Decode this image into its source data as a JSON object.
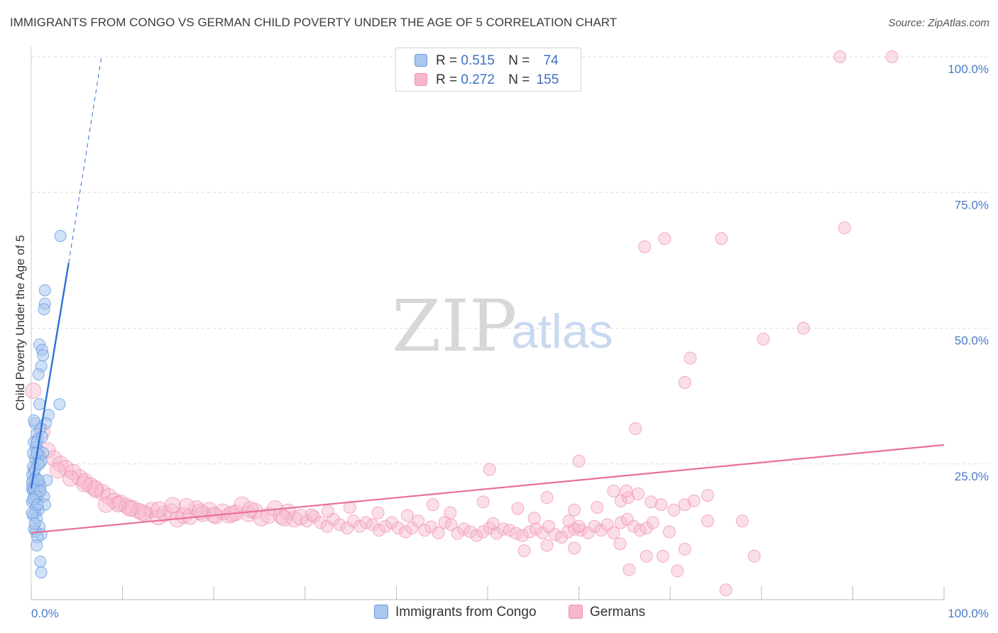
{
  "header": {
    "title": "IMMIGRANTS FROM CONGO VS GERMAN CHILD POVERTY UNDER THE AGE OF 5 CORRELATION CHART",
    "source": "Source: ZipAtlas.com"
  },
  "legend": {
    "rows": [
      {
        "r_label": "R =",
        "r_value": "0.515",
        "n_label": "N =",
        "n_value": "74"
      },
      {
        "r_label": "R =",
        "r_value": "0.272",
        "n_label": "N =",
        "n_value": "155"
      }
    ]
  },
  "watermark": {
    "zip": "ZIP",
    "atlas": "atlas"
  },
  "colors": {
    "congo_fill": "#a9c8f0",
    "congo_stroke": "#6a9ae0",
    "congo_line": "#2f6fd4",
    "german_fill": "#f7b8cc",
    "german_stroke": "#ee8fae",
    "german_line": "#e8709a",
    "grid": "#dcdcdc",
    "tick_label": "#4a7cc9"
  },
  "chart_data": {
    "type": "scatter",
    "title": "IMMIGRANTS FROM CONGO VS GERMAN CHILD POVERTY UNDER THE AGE OF 5 CORRELATION CHART",
    "xlabel": "",
    "ylabel": "Child Poverty Under the Age of 5",
    "xlim": [
      0,
      100
    ],
    "ylim": [
      0,
      100
    ],
    "x_tick_labels": [
      "0.0%",
      "100.0%"
    ],
    "y_ticks": [
      {
        "value": 25,
        "label": "25.0%"
      },
      {
        "value": 50,
        "label": "50.0%"
      },
      {
        "value": 75,
        "label": "75.0%"
      },
      {
        "value": 100,
        "label": "100.0%"
      }
    ],
    "series": [
      {
        "name": "Immigrants from Congo",
        "R": 0.515,
        "N": 74,
        "trend": {
          "x0": 0,
          "y0": 20.5,
          "x1": 4.1,
          "y1": 62,
          "dashed_to": {
            "x": 7.7,
            "y": 100
          }
        },
        "points": [
          [
            3.2,
            67
          ],
          [
            1.5,
            57
          ],
          [
            1.5,
            54.5
          ],
          [
            1.4,
            53.5
          ],
          [
            0.9,
            47
          ],
          [
            1.2,
            46
          ],
          [
            1.3,
            45
          ],
          [
            1.1,
            43
          ],
          [
            0.8,
            41.5
          ],
          [
            3.1,
            36
          ],
          [
            0.9,
            36
          ],
          [
            1.9,
            34
          ],
          [
            0.4,
            32.5
          ],
          [
            1.6,
            32.5
          ],
          [
            1.0,
            31.5
          ],
          [
            0.6,
            30.5
          ],
          [
            0.7,
            29.5
          ],
          [
            0.3,
            29
          ],
          [
            0.5,
            28
          ],
          [
            0.8,
            27.5
          ],
          [
            1.3,
            27
          ],
          [
            0.9,
            26.5
          ],
          [
            0.4,
            26
          ],
          [
            1.1,
            25.5
          ],
          [
            0.7,
            25
          ],
          [
            0.2,
            24.5
          ],
          [
            0.3,
            23.5
          ],
          [
            0.1,
            23
          ],
          [
            0.5,
            22.5
          ],
          [
            1.7,
            22
          ],
          [
            0.2,
            22
          ],
          [
            0.4,
            21.5
          ],
          [
            0.8,
            21.5
          ],
          [
            1.0,
            21
          ],
          [
            0.3,
            21
          ],
          [
            0.1,
            20.5
          ],
          [
            0.6,
            20.5
          ],
          [
            0.9,
            20
          ],
          [
            0.2,
            20
          ],
          [
            0.4,
            19.5
          ],
          [
            1.4,
            19
          ],
          [
            0.7,
            19
          ],
          [
            0.3,
            18.5
          ],
          [
            0.1,
            18
          ],
          [
            1.5,
            17.5
          ],
          [
            0.5,
            17
          ],
          [
            0.8,
            16.5
          ],
          [
            0.4,
            16
          ],
          [
            0.2,
            15.5
          ],
          [
            0.6,
            15
          ],
          [
            0.9,
            13.5
          ],
          [
            0.3,
            13
          ],
          [
            0.5,
            12.5
          ],
          [
            1.1,
            12
          ],
          [
            0.7,
            11.5
          ],
          [
            0.6,
            10
          ],
          [
            1.0,
            7
          ],
          [
            1.1,
            5
          ],
          [
            0.2,
            27
          ],
          [
            0.6,
            27
          ],
          [
            0.1,
            21.5
          ],
          [
            0.3,
            20.5
          ],
          [
            0.5,
            19
          ],
          [
            0.2,
            18.5
          ],
          [
            0.8,
            22
          ],
          [
            0.4,
            24
          ],
          [
            0.6,
            29
          ],
          [
            1.2,
            30
          ],
          [
            0.3,
            33
          ],
          [
            0.9,
            25
          ],
          [
            0.1,
            16
          ],
          [
            0.7,
            17.5
          ],
          [
            0.4,
            14
          ],
          [
            1.0,
            20
          ]
        ]
      },
      {
        "name": "Germans",
        "R": 0.272,
        "N": 155,
        "trend": {
          "x0": 0,
          "y0": 12.3,
          "x1": 100,
          "y1": 28.5
        },
        "points": [
          [
            88.6,
            100
          ],
          [
            94.3,
            100
          ],
          [
            89.1,
            68.5
          ],
          [
            69.4,
            66.5
          ],
          [
            75.6,
            66.5
          ],
          [
            67.2,
            65
          ],
          [
            84.6,
            50
          ],
          [
            80.2,
            48
          ],
          [
            72.2,
            44.5
          ],
          [
            71.6,
            40
          ],
          [
            66.2,
            31.5
          ],
          [
            0.2,
            38.5
          ],
          [
            1.2,
            31
          ],
          [
            1.8,
            27.5
          ],
          [
            2.5,
            26
          ],
          [
            3.2,
            25
          ],
          [
            3.8,
            24.2
          ],
          [
            4.6,
            23.5
          ],
          [
            5.3,
            22.5
          ],
          [
            5.9,
            21.8
          ],
          [
            6.5,
            21
          ],
          [
            7.1,
            20.2
          ],
          [
            7.8,
            19.8
          ],
          [
            8.5,
            19
          ],
          [
            9.1,
            18.2
          ],
          [
            9.8,
            17.8
          ],
          [
            10.5,
            17.2
          ],
          [
            11.1,
            16.8
          ],
          [
            11.8,
            16.3
          ],
          [
            12.5,
            15.8
          ],
          [
            13.2,
            16.5
          ],
          [
            13.9,
            15.2
          ],
          [
            14.6,
            15.8
          ],
          [
            15.3,
            16.2
          ],
          [
            16.0,
            14.8
          ],
          [
            16.7,
            15.5
          ],
          [
            17.4,
            15.3
          ],
          [
            18.1,
            16.8
          ],
          [
            18.8,
            15.8
          ],
          [
            19.5,
            16.5
          ],
          [
            20.2,
            15.4
          ],
          [
            21.0,
            16.2
          ],
          [
            21.7,
            15.5
          ],
          [
            22.4,
            16
          ],
          [
            23.1,
            17.5
          ],
          [
            23.8,
            15.8
          ],
          [
            24.5,
            16.3
          ],
          [
            25.2,
            15
          ],
          [
            26.0,
            15.5
          ],
          [
            26.7,
            16.8
          ],
          [
            27.4,
            15.4
          ],
          [
            28.1,
            16.2
          ],
          [
            28.8,
            14.8
          ],
          [
            29.5,
            15.2
          ],
          [
            30.2,
            14.5
          ],
          [
            31.0,
            15.3
          ],
          [
            31.7,
            14.2
          ],
          [
            32.4,
            13.5
          ],
          [
            33.1,
            14.8
          ],
          [
            33.8,
            13.8
          ],
          [
            34.6,
            13.2
          ],
          [
            35.3,
            14.5
          ],
          [
            36.0,
            13.5
          ],
          [
            36.7,
            14.2
          ],
          [
            37.4,
            13.8
          ],
          [
            38.1,
            12.8
          ],
          [
            38.8,
            13.5
          ],
          [
            39.5,
            14.2
          ],
          [
            40.2,
            13.2
          ],
          [
            41.0,
            12.5
          ],
          [
            41.7,
            13.2
          ],
          [
            42.4,
            14.5
          ],
          [
            43.1,
            12.8
          ],
          [
            43.8,
            13.4
          ],
          [
            44.6,
            12.3
          ],
          [
            45.3,
            14.2
          ],
          [
            46.0,
            13.8
          ],
          [
            46.7,
            12.2
          ],
          [
            47.4,
            13
          ],
          [
            48.1,
            12.5
          ],
          [
            48.8,
            11.8
          ],
          [
            49.5,
            12.5
          ],
          [
            50.2,
            13.2
          ],
          [
            51.0,
            12.2
          ],
          [
            51.7,
            13
          ],
          [
            52.4,
            12.8
          ],
          [
            53.1,
            12.2
          ],
          [
            53.8,
            11.8
          ],
          [
            54.6,
            12.5
          ],
          [
            55.3,
            13
          ],
          [
            56.0,
            12.3
          ],
          [
            56.7,
            13.5
          ],
          [
            57.4,
            12
          ],
          [
            58.1,
            11.5
          ],
          [
            58.8,
            12.5
          ],
          [
            59.5,
            13
          ],
          [
            60.2,
            12.8
          ],
          [
            61.0,
            12.3
          ],
          [
            61.7,
            13.5
          ],
          [
            62.4,
            12.8
          ],
          [
            63.1,
            13.8
          ],
          [
            63.8,
            12.3
          ],
          [
            64.6,
            14.2
          ],
          [
            65.3,
            14.8
          ],
          [
            66.0,
            13.5
          ],
          [
            66.7,
            12.8
          ],
          [
            67.4,
            13.2
          ],
          [
            68.1,
            14.2
          ],
          [
            69.0,
            17.5
          ],
          [
            70.4,
            16.5
          ],
          [
            71.6,
            17.5
          ],
          [
            72.6,
            18.2
          ],
          [
            74.1,
            19.2
          ],
          [
            64.6,
            18.2
          ],
          [
            65.4,
            18.8
          ],
          [
            62.0,
            17
          ],
          [
            63.8,
            20
          ],
          [
            65.2,
            20
          ],
          [
            66.5,
            19.5
          ],
          [
            67.9,
            18
          ],
          [
            59.5,
            16.5
          ],
          [
            56.5,
            18.8
          ],
          [
            58.9,
            14.5
          ],
          [
            55.1,
            15
          ],
          [
            53.3,
            16.8
          ],
          [
            50.6,
            14
          ],
          [
            49.5,
            18
          ],
          [
            45.9,
            16
          ],
          [
            44.0,
            17.5
          ],
          [
            41.2,
            15.5
          ],
          [
            38.0,
            16
          ],
          [
            34.9,
            17
          ],
          [
            32.5,
            16.3
          ],
          [
            30.7,
            15.6
          ],
          [
            27.7,
            15
          ],
          [
            24.0,
            16.6
          ],
          [
            22.0,
            15.8
          ],
          [
            20.0,
            15.6
          ],
          [
            18.5,
            16.2
          ],
          [
            17.0,
            17.2
          ],
          [
            15.5,
            17.4
          ],
          [
            14.0,
            16.6
          ],
          [
            12.2,
            16
          ],
          [
            10.8,
            16.8
          ],
          [
            9.5,
            17.6
          ],
          [
            8.2,
            17.5
          ],
          [
            7.0,
            20.5
          ],
          [
            5.8,
            21.3
          ],
          [
            4.3,
            22.3
          ],
          [
            2.9,
            23.8
          ],
          [
            50.2,
            24
          ],
          [
            60.0,
            25.5
          ],
          [
            69.9,
            12.5
          ],
          [
            77.9,
            14.5
          ],
          [
            74.1,
            14.5
          ],
          [
            64.5,
            10.3
          ],
          [
            71.6,
            9.3
          ],
          [
            69.2,
            8
          ],
          [
            67.4,
            8
          ],
          [
            65.5,
            5.5
          ],
          [
            70.8,
            5.3
          ],
          [
            76.1,
            1.8
          ],
          [
            79.2,
            8
          ],
          [
            56.5,
            10
          ],
          [
            59.5,
            9.5
          ],
          [
            54.0,
            9
          ],
          [
            60.0,
            13.5
          ]
        ]
      }
    ],
    "legend_position": "top-center"
  }
}
